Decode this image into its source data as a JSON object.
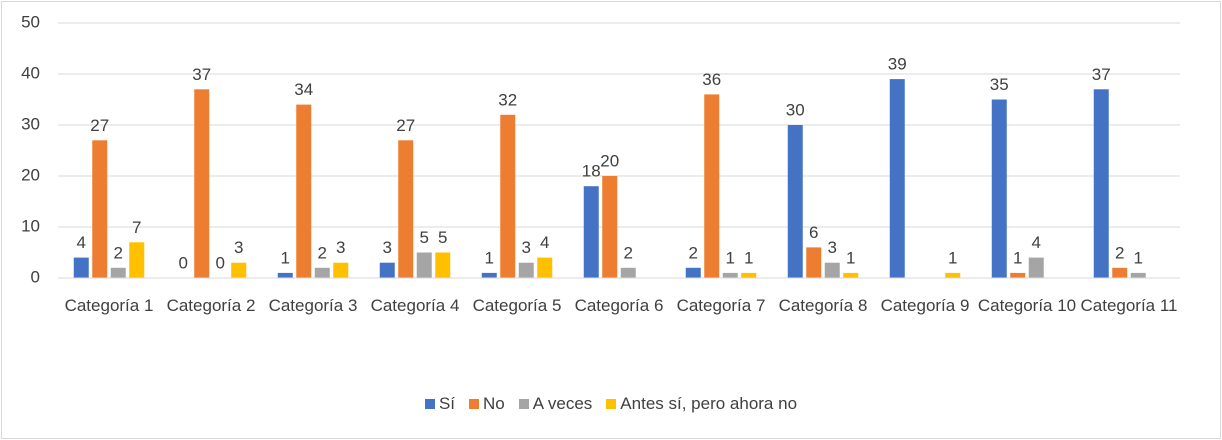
{
  "chart_data": {
    "type": "bar",
    "categories": [
      "Categoría 1",
      "Categoría 2",
      "Categoría 3",
      "Categoría 4",
      "Categoría 5",
      "Categoría 6",
      "Categoría 7",
      "Categoría 8",
      "Categoría 9",
      "Categoría 10",
      "Categoría 11"
    ],
    "series": [
      {
        "name": "Sí",
        "color": "#4472c4",
        "values": [
          4,
          0,
          1,
          3,
          1,
          18,
          2,
          30,
          39,
          35,
          37
        ]
      },
      {
        "name": "No",
        "color": "#ed7d31",
        "values": [
          27,
          37,
          34,
          27,
          32,
          20,
          36,
          6,
          null,
          1,
          2
        ]
      },
      {
        "name": "A veces",
        "color": "#a5a5a5",
        "values": [
          2,
          0,
          2,
          5,
          3,
          2,
          1,
          3,
          null,
          4,
          1
        ]
      },
      {
        "name": "Antes sí, pero ahora no",
        "color": "#ffc000",
        "values": [
          7,
          3,
          3,
          5,
          4,
          null,
          1,
          1,
          1,
          null,
          null
        ]
      }
    ],
    "ylim": [
      0,
      50
    ],
    "yticks": [
      0,
      10,
      20,
      30,
      40,
      50
    ],
    "grid": true,
    "legend": "bottom"
  }
}
